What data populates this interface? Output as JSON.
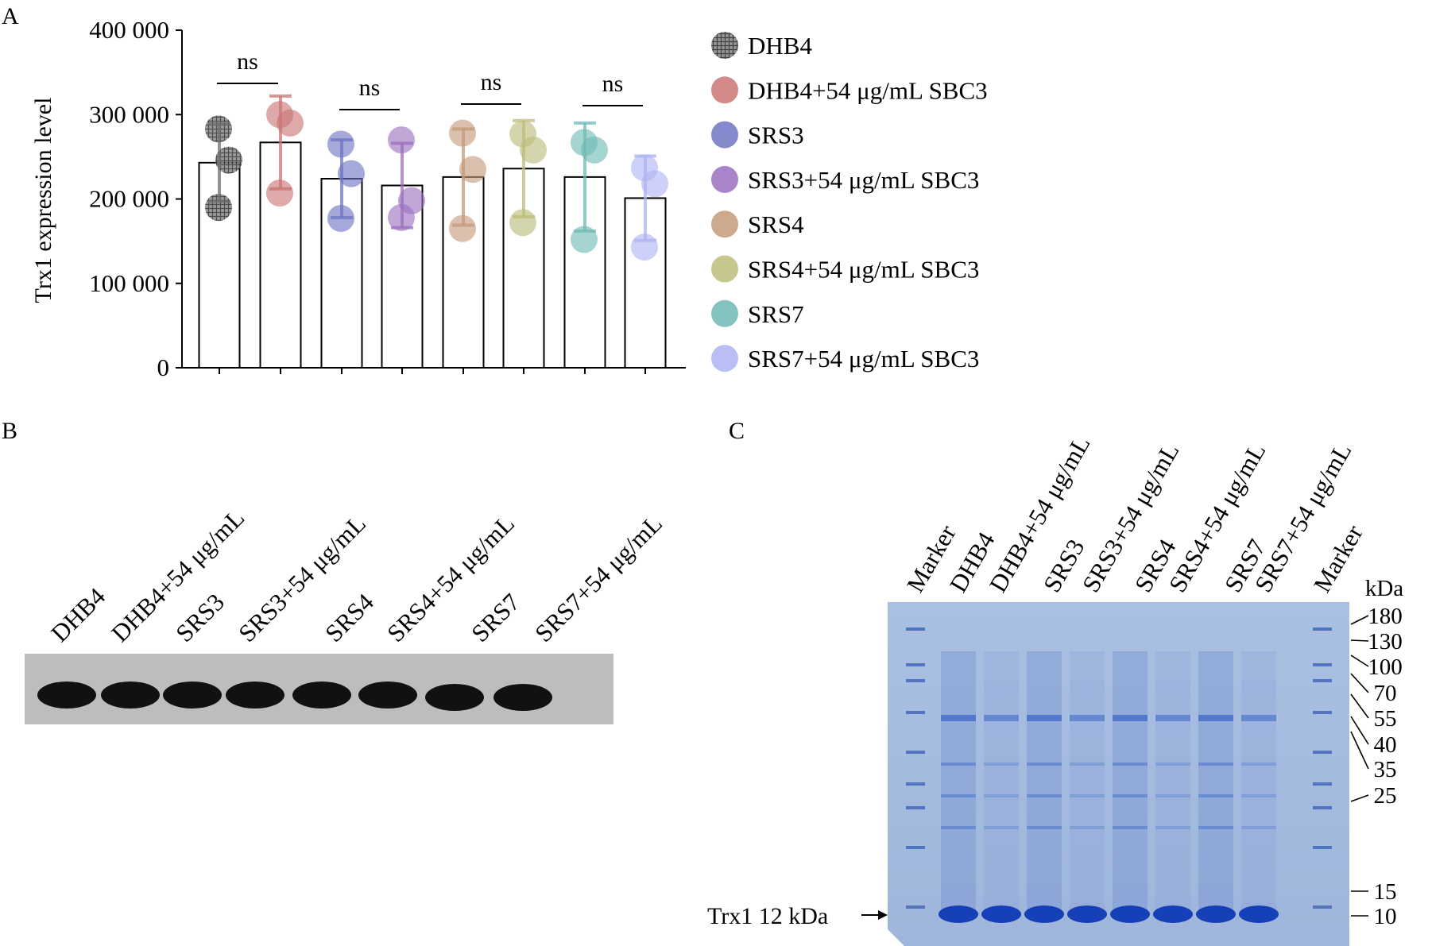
{
  "panels": {
    "a": "A",
    "b": "B",
    "c": "C"
  },
  "chart_data": {
    "type": "bar",
    "ylabel": "Trx1 expression level",
    "yticks": [
      "0",
      "100 000",
      "200 000",
      "300 000",
      "400 000"
    ],
    "ytick_values": [
      0,
      100000,
      200000,
      300000,
      400000
    ],
    "ylim": [
      0,
      400000
    ],
    "significance": [
      "ns",
      "ns",
      "ns",
      "ns"
    ],
    "series": [
      {
        "name": "DHB4",
        "value": 243000,
        "sd": 46000,
        "points": [
          283000,
          246000,
          190000
        ],
        "color": "#6e6e6e"
      },
      {
        "name": "DHB4+54 μg/mL SBC3",
        "value": 267000,
        "sd": 55000,
        "points": [
          300000,
          290000,
          207000
        ],
        "color": "#c97474"
      },
      {
        "name": "SRS3",
        "value": 224000,
        "sd": 46000,
        "points": [
          265000,
          230000,
          177000
        ],
        "color": "#6e74c2"
      },
      {
        "name": "SRS3+54 μg/mL SBC3",
        "value": 216000,
        "sd": 50000,
        "points": [
          270000,
          198000,
          178000
        ],
        "color": "#9b6fc0"
      },
      {
        "name": "SRS4",
        "value": 226000,
        "sd": 57000,
        "points": [
          278000,
          235000,
          165000
        ],
        "color": "#c49a7a"
      },
      {
        "name": "SRS4+54 μg/mL SBC3",
        "value": 236000,
        "sd": 57000,
        "points": [
          277000,
          258000,
          172000
        ],
        "color": "#bcbc7a"
      },
      {
        "name": "SRS7",
        "value": 226000,
        "sd": 64000,
        "points": [
          267000,
          258000,
          152000
        ],
        "color": "#6fb9b5"
      },
      {
        "name": "SRS7+54 μg/mL SBC3",
        "value": 201000,
        "sd": 50000,
        "points": [
          237000,
          218000,
          143000
        ],
        "color": "#aeb3f3"
      }
    ]
  },
  "blot": {
    "lanes": [
      "DHB4",
      "DHB4+54 μg/mL",
      "SRS3",
      "SRS3+54 μg/mL",
      "SRS4",
      "SRS4+54 μg/mL",
      "SRS7",
      "SRS7+54 μg/mL"
    ]
  },
  "gel": {
    "lanes": [
      "Marker",
      "DHB4",
      "DHB4+54 μg/mL",
      "SRS3",
      "SRS3+54 μg/mL",
      "SRS4",
      "SRS4+54 μg/mL",
      "SRS7",
      "SRS7+54 μg/mL",
      "Marker"
    ],
    "unit": "kDa",
    "markers": [
      "180",
      "130",
      "100",
      "70",
      "55",
      "40",
      "35",
      "25",
      "15",
      "10"
    ],
    "trx1_label": "Trx1 12 kDa"
  }
}
